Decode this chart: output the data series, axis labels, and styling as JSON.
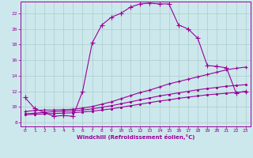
{
  "bg_color": "#cce8ec",
  "grid_color": "#aacccc",
  "line_color": "#990099",
  "xlabel": "Windchill (Refroidissement éolien,°C)",
  "xlim": [
    -0.5,
    23.5
  ],
  "ylim": [
    7.5,
    23.5
  ],
  "yticks": [
    8,
    10,
    12,
    14,
    16,
    18,
    20,
    22
  ],
  "xticks": [
    0,
    1,
    2,
    3,
    4,
    5,
    6,
    7,
    8,
    9,
    10,
    11,
    12,
    13,
    14,
    15,
    16,
    17,
    18,
    19,
    20,
    21,
    22,
    23
  ],
  "line1_x": [
    0,
    1,
    2,
    3,
    4,
    5,
    6,
    7,
    8,
    9,
    10,
    11,
    12,
    13,
    14,
    15,
    16,
    17,
    18,
    19,
    20,
    21,
    22,
    23
  ],
  "line1_y": [
    11.2,
    9.8,
    9.3,
    8.8,
    8.9,
    8.8,
    12.0,
    18.2,
    20.5,
    21.5,
    22.0,
    22.8,
    23.2,
    23.3,
    23.2,
    23.2,
    20.5,
    20.0,
    18.8,
    15.3,
    15.2,
    15.0,
    11.8,
    12.0
  ],
  "line2_x": [
    0,
    1,
    2,
    3,
    4,
    5,
    6,
    7,
    8,
    9,
    10,
    11,
    12,
    13,
    14,
    15,
    16,
    17,
    18,
    19,
    20,
    21,
    22,
    23
  ],
  "line2_y": [
    9.4,
    9.55,
    9.6,
    9.6,
    9.65,
    9.7,
    9.85,
    10.05,
    10.35,
    10.65,
    11.05,
    11.45,
    11.85,
    12.15,
    12.55,
    12.95,
    13.25,
    13.55,
    13.85,
    14.15,
    14.45,
    14.75,
    14.95,
    15.1
  ],
  "line3_x": [
    0,
    1,
    2,
    3,
    4,
    5,
    6,
    7,
    8,
    9,
    10,
    11,
    12,
    13,
    14,
    15,
    16,
    17,
    18,
    19,
    20,
    21,
    22,
    23
  ],
  "line3_y": [
    9.1,
    9.2,
    9.3,
    9.4,
    9.45,
    9.5,
    9.6,
    9.75,
    9.95,
    10.15,
    10.4,
    10.65,
    10.9,
    11.15,
    11.4,
    11.6,
    11.8,
    12.0,
    12.2,
    12.35,
    12.5,
    12.65,
    12.75,
    12.85
  ],
  "line4_x": [
    0,
    1,
    2,
    3,
    4,
    5,
    6,
    7,
    8,
    9,
    10,
    11,
    12,
    13,
    14,
    15,
    16,
    17,
    18,
    19,
    20,
    21,
    22,
    23
  ],
  "line4_y": [
    9.0,
    9.05,
    9.1,
    9.15,
    9.2,
    9.25,
    9.35,
    9.45,
    9.6,
    9.75,
    9.95,
    10.15,
    10.35,
    10.55,
    10.75,
    10.9,
    11.1,
    11.25,
    11.4,
    11.55,
    11.65,
    11.75,
    11.85,
    11.95
  ]
}
